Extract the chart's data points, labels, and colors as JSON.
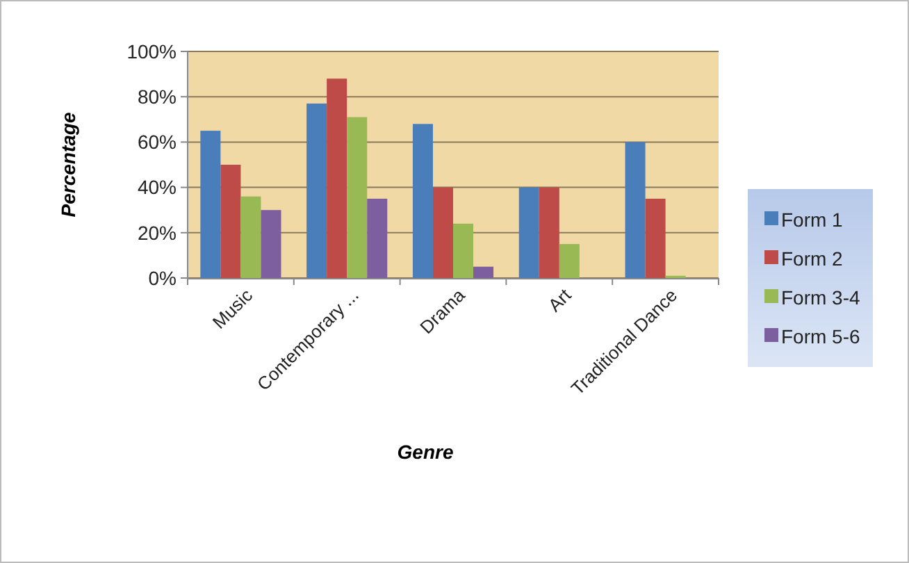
{
  "chart_data": {
    "type": "bar",
    "xlabel": "Genre",
    "ylabel": "Percentage",
    "categories": [
      "Music",
      "Contemporary ...",
      "Drama",
      "Art",
      "Traditional Dance"
    ],
    "series": [
      {
        "name": "Form 1",
        "color": "#4a7ebb",
        "values": [
          65,
          77,
          68,
          40,
          60
        ]
      },
      {
        "name": "Form 2",
        "color": "#be4b48",
        "values": [
          50,
          88,
          40,
          40,
          35
        ]
      },
      {
        "name": "Form 3-4",
        "color": "#98b954",
        "values": [
          36,
          71,
          24,
          15,
          1
        ]
      },
      {
        "name": "Form 5-6",
        "color": "#7d5fa0",
        "values": [
          30,
          35,
          5,
          0,
          0
        ]
      }
    ],
    "ylim": [
      0,
      100
    ],
    "yticks": [
      {
        "value": 0,
        "label": "0%"
      },
      {
        "value": 20,
        "label": "20%"
      },
      {
        "value": 40,
        "label": "40%"
      },
      {
        "value": 60,
        "label": "60%"
      },
      {
        "value": 80,
        "label": "80%"
      },
      {
        "value": 100,
        "label": "100%"
      }
    ],
    "grid": "y",
    "legend": "right"
  }
}
